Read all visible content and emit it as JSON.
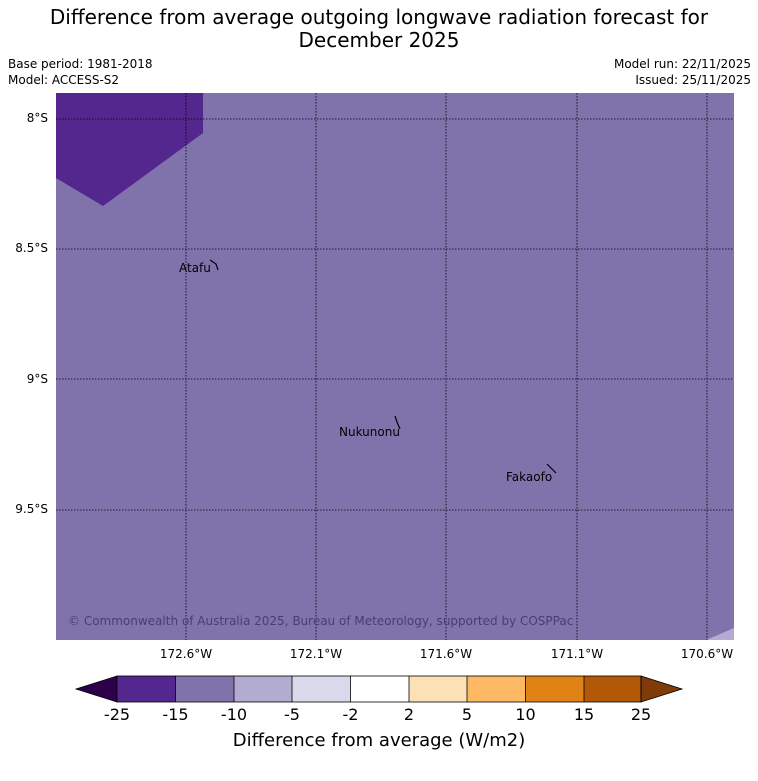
{
  "title_line1": "Difference from average outgoing longwave radiation forecast for",
  "title_line2": "December 2025",
  "base_period": "Base period: 1981-2018",
  "model": "Model: ACCESS-S2",
  "model_run": "Model run: 22/11/2025",
  "issued": "Issued: 25/11/2025",
  "lat_labels": [
    "8°S",
    "8.5°S",
    "9°S",
    "9.5°S"
  ],
  "lon_labels": [
    "172.6°W",
    "172.1°W",
    "171.6°W",
    "171.1°W",
    "170.6°W"
  ],
  "islands": [
    "Atafu",
    "Nukunonu",
    "Fakaofo"
  ],
  "copyright": "© Commonwealth of Australia 2025, Bureau of Meteorology, supported by COSPPac",
  "colorbar": {
    "title": "Difference from average (W/m2)",
    "ticks": [
      "-25",
      "-15",
      "-10",
      "-5",
      "-2",
      "2",
      "5",
      "10",
      "15",
      "25"
    ],
    "colors": [
      "#54278f",
      "#8073ac",
      "#b2abd2",
      "#d8daeb",
      "#ffffff",
      "#fee0b6",
      "#fdb863",
      "#e08214",
      "#b35806"
    ],
    "under_color": "#2d004b",
    "over_color": "#7f3b08"
  },
  "map_colors": {
    "background": "#8073ac",
    "strong_negative": "#54278f",
    "weak_negative": "#b2abd2"
  }
}
